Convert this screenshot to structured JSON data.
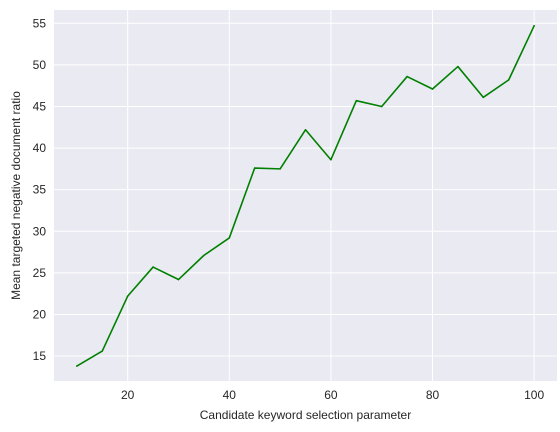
{
  "chart_data": {
    "type": "line",
    "title": "",
    "xlabel": "Candidate keyword selection parameter",
    "ylabel": "Mean targeted negative document ratio",
    "xlim": [
      5.5,
      104.5
    ],
    "ylim": [
      12.0,
      56.6
    ],
    "xticks": [
      20,
      40,
      60,
      80,
      100
    ],
    "yticks": [
      15,
      20,
      25,
      30,
      35,
      40,
      45,
      50,
      55
    ],
    "grid": true,
    "background": "#eaeaf2",
    "series": [
      {
        "color": "#008000",
        "x": [
          10,
          15,
          20,
          25,
          30,
          35,
          40,
          45,
          50,
          55,
          60,
          65,
          70,
          75,
          80,
          85,
          90,
          95,
          100
        ],
        "y": [
          13.8,
          15.6,
          22.2,
          25.7,
          24.2,
          27.1,
          29.2,
          37.6,
          37.5,
          42.2,
          38.6,
          45.7,
          45.0,
          48.6,
          47.1,
          49.8,
          46.1,
          48.2,
          54.7
        ]
      }
    ]
  }
}
